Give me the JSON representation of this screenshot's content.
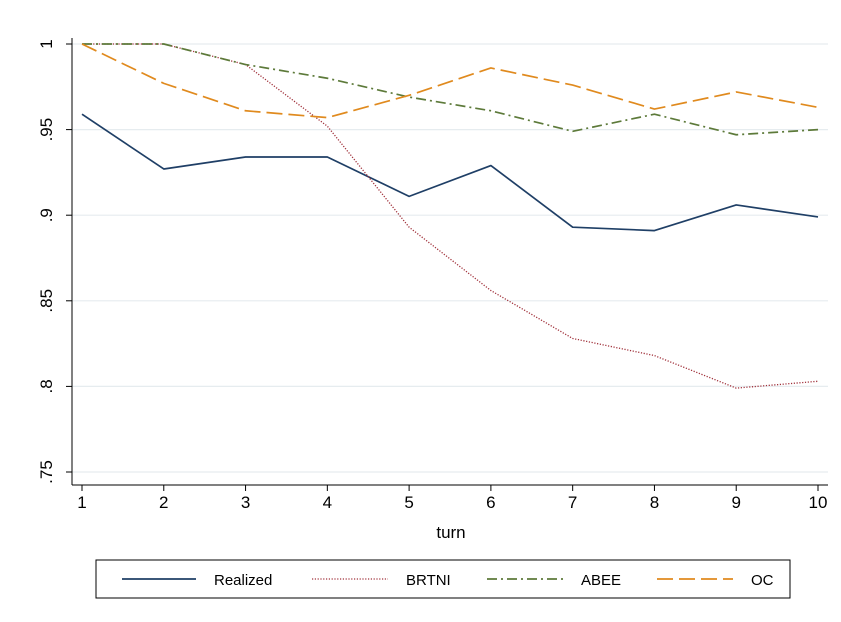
{
  "chart_data": {
    "type": "line",
    "title": "",
    "xlabel": "turn",
    "ylabel": "",
    "x": [
      1,
      2,
      3,
      4,
      5,
      6,
      7,
      8,
      9,
      10
    ],
    "x_ticks": [
      "1",
      "2",
      "3",
      "4",
      "5",
      "6",
      "7",
      "8",
      "9",
      "10"
    ],
    "y_ticks": [
      ".75",
      ".8",
      ".85",
      ".9",
      ".95",
      "1"
    ],
    "y_tick_values": [
      0.75,
      0.8,
      0.85,
      0.9,
      0.95,
      1.0
    ],
    "xlim": [
      1,
      10
    ],
    "ylim": [
      0.75,
      1.0
    ],
    "grid": "horizontal",
    "legend_position": "bottom",
    "series": [
      {
        "name": "Realized",
        "color": "#1f3f66",
        "dash": "solid",
        "values": [
          0.959,
          0.927,
          0.934,
          0.934,
          0.911,
          0.929,
          0.893,
          0.891,
          0.906,
          0.899
        ]
      },
      {
        "name": "BRTNI",
        "color": "#a0303a",
        "dash": "dotted",
        "values": [
          1.0,
          1.0,
          0.988,
          0.952,
          0.893,
          0.856,
          0.828,
          0.818,
          0.799,
          0.803
        ]
      },
      {
        "name": "ABEE",
        "color": "#5d7a3a",
        "dash": "dashdot",
        "values": [
          1.0,
          1.0,
          0.988,
          0.98,
          0.969,
          0.961,
          0.949,
          0.959,
          0.947,
          0.95
        ]
      },
      {
        "name": "OC",
        "color": "#e08a1e",
        "dash": "longdash",
        "values": [
          1.0,
          0.977,
          0.961,
          0.957,
          0.97,
          0.986,
          0.976,
          0.962,
          0.972,
          0.963
        ]
      }
    ]
  }
}
